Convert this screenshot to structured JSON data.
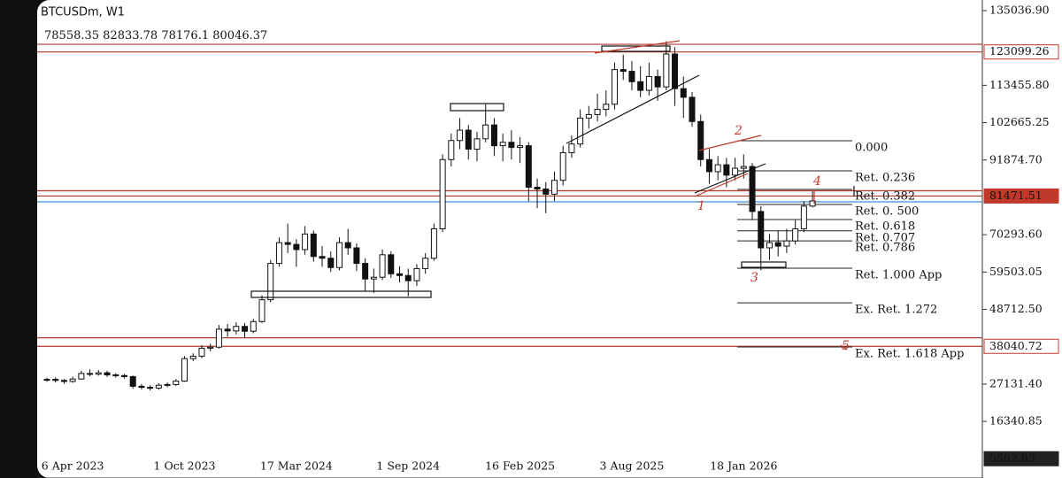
{
  "chart_data": {
    "type": "candlestick",
    "title": "BTCUSDm, W1",
    "categories": [
      null,
      null,
      null,
      "6 Apr 2023",
      null,
      null,
      null,
      null,
      null,
      null,
      null,
      null,
      null,
      null,
      null,
      null,
      "1 Oct 2023",
      null,
      null,
      null,
      null,
      null,
      null,
      null,
      null,
      null,
      null,
      null,
      null,
      "17 Mar 2024",
      null,
      null,
      null,
      null,
      null,
      null,
      null,
      null,
      null,
      null,
      null,
      null,
      "1 Sep 2024",
      null,
      null,
      null,
      null,
      null,
      null,
      null,
      null,
      null,
      null,
      null,
      null,
      "16 Feb 2025",
      null,
      null,
      null,
      null,
      null,
      null,
      null,
      null,
      null,
      null,
      null,
      null,
      "3 Aug 2025",
      null,
      null,
      null,
      null,
      null,
      null,
      null,
      null,
      null,
      null,
      null,
      null,
      "18 Jan 2026",
      null,
      null,
      null,
      null,
      null,
      null,
      null,
      null
    ],
    "open": [
      28300,
      28500,
      28200,
      27900,
      28600,
      30200,
      30000,
      30400,
      29800,
      29600,
      29300,
      26500,
      26200,
      26000,
      26800,
      27000,
      28000,
      34500,
      35200,
      37500,
      37800,
      43000,
      42500,
      43800,
      42400,
      45200,
      51500,
      62000,
      68000,
      67500,
      66000,
      70500,
      64000,
      63500,
      60800,
      68000,
      66500,
      62000,
      57500,
      58000,
      64500,
      59000,
      58500,
      57000,
      60500,
      63500,
      72000,
      92000,
      97500,
      100500,
      95000,
      98000,
      102000,
      96000,
      97000,
      95500,
      96000,
      84000,
      83500,
      82000,
      86000,
      94000,
      96500,
      104000,
      105000,
      106500,
      108000,
      118000,
      117500,
      114500,
      112000,
      116000,
      113000,
      122500,
      112500,
      110000,
      103000,
      92000,
      88500,
      90500,
      87500,
      89500,
      90000,
      77000,
      66500,
      68000,
      67000,
      68500,
      72000,
      78558.35
    ],
    "high": [
      29000,
      29100,
      28600,
      29300,
      31000,
      31400,
      31200,
      31000,
      30300,
      30100,
      29600,
      27200,
      26800,
      27400,
      27600,
      28600,
      35200,
      36000,
      38400,
      38800,
      44200,
      44500,
      45000,
      44800,
      46000,
      52800,
      63000,
      69500,
      73500,
      69000,
      72800,
      71500,
      67000,
      65500,
      69500,
      72000,
      67800,
      63500,
      60500,
      66000,
      65500,
      61200,
      60500,
      61800,
      65000,
      73500,
      93500,
      99500,
      104000,
      102000,
      100000,
      108000,
      104000,
      99500,
      100500,
      98500,
      97000,
      86500,
      85500,
      88500,
      96000,
      99000,
      106500,
      107500,
      111000,
      112000,
      120000,
      122300,
      120500,
      119000,
      120000,
      118000,
      126200,
      124500,
      116000,
      111500,
      105000,
      95000,
      93000,
      92500,
      92500,
      93500,
      91000,
      78500,
      70500,
      71500,
      72000,
      74500,
      80000,
      82833.78
    ],
    "low": [
      27800,
      27600,
      27200,
      27500,
      28400,
      29400,
      29600,
      29200,
      29000,
      28700,
      25800,
      25600,
      25300,
      25500,
      26200,
      26600,
      27800,
      33800,
      34600,
      36600,
      37400,
      40800,
      41500,
      40500,
      41800,
      44800,
      50800,
      61000,
      65000,
      61000,
      64500,
      62500,
      61000,
      59500,
      60000,
      64500,
      59800,
      54000,
      53500,
      57200,
      57800,
      56500,
      52500,
      55500,
      59000,
      62800,
      71000,
      90000,
      95000,
      92000,
      91500,
      97000,
      93000,
      91500,
      92000,
      91000,
      80000,
      78000,
      76500,
      80000,
      84500,
      92500,
      95500,
      101000,
      103000,
      104500,
      106500,
      115000,
      112000,
      110000,
      110500,
      109000,
      112000,
      107500,
      104000,
      101500,
      90000,
      85000,
      86000,
      84000,
      86000,
      86500,
      74500,
      60000,
      63000,
      64000,
      65000,
      67500,
      71000,
      78176.1
    ],
    "close": [
      28500,
      28200,
      27900,
      28600,
      30200,
      30000,
      30400,
      29800,
      29600,
      29300,
      26500,
      26200,
      26000,
      26800,
      27000,
      28000,
      34500,
      35200,
      37500,
      37800,
      43000,
      42500,
      43800,
      42400,
      45200,
      51500,
      62000,
      68000,
      67500,
      66000,
      70500,
      64000,
      63500,
      60800,
      68000,
      66500,
      62000,
      57500,
      58000,
      64500,
      59000,
      58500,
      57000,
      60500,
      63500,
      72000,
      92000,
      97500,
      100500,
      95000,
      98000,
      102000,
      96000,
      97000,
      95500,
      96000,
      84000,
      83500,
      82000,
      86000,
      94000,
      96500,
      104000,
      105000,
      106500,
      108000,
      118000,
      117500,
      114500,
      112000,
      116000,
      113000,
      122500,
      112500,
      110000,
      103000,
      92000,
      88500,
      90500,
      87500,
      89500,
      90000,
      77000,
      66500,
      68000,
      67000,
      68500,
      72000,
      78558.35,
      80046.37
    ],
    "up_color": "#ffffff",
    "down_color": "#111111",
    "ylim": [
      0,
      138105
    ],
    "yticks": [
      {
        "value": 135036.9,
        "label": "135036.90"
      },
      {
        "value": 113455.8,
        "label": "113455.80"
      },
      102665.25,
      {
        "value": 91874.7,
        "label": "91874.70"
      },
      {
        "value": 70293.6,
        "label": "70293.60"
      },
      59503.05,
      {
        "value": 48712.5,
        "label": "48712.50"
      },
      {
        "value": 27131.4,
        "label": "27131.40"
      },
      16340.85
    ],
    "price_labels": [
      {
        "value": 123099.26,
        "color": "#c0392b",
        "style": "outline"
      },
      {
        "value": 81471.51,
        "color": "#c0392b",
        "style": "filled"
      },
      {
        "value": 38040.72,
        "color": "#c0392b",
        "style": "outline"
      },
      {
        "value": 5562.83,
        "color": "#222222",
        "style": "filled"
      }
    ],
    "levels": [
      {
        "value": 125300,
        "color": "#b03a2e"
      },
      {
        "value": 123099.26,
        "color": "#b03a2e"
      },
      {
        "value": 83000,
        "color": "#b03a2e"
      },
      {
        "value": 81471.51,
        "color": "#b03a2e"
      },
      {
        "value": 79800,
        "color": "#3d8fd6"
      },
      {
        "value": 40500,
        "color": "#b03a2e"
      },
      {
        "value": 38040.72,
        "color": "#b03a2e"
      }
    ],
    "fib_levels": {
      "labels": [
        "0.000",
        "Ret. 0.236",
        "Ret. 0.382",
        "Ret. 0. 500",
        "Ret. 0.618",
        "Ret. 0.707",
        "Ret. 0.786",
        "Ret. 1.000 App",
        "Ex. Ret. 1.272",
        "Ex. Ret. 1.618 App"
      ],
      "values": [
        97440,
        88750,
        83375,
        79030,
        74686,
        71410,
        68500,
        60620,
        50605,
        37865
      ]
    },
    "waves": [
      "1",
      "2",
      "3",
      "4",
      "5"
    ]
  }
}
